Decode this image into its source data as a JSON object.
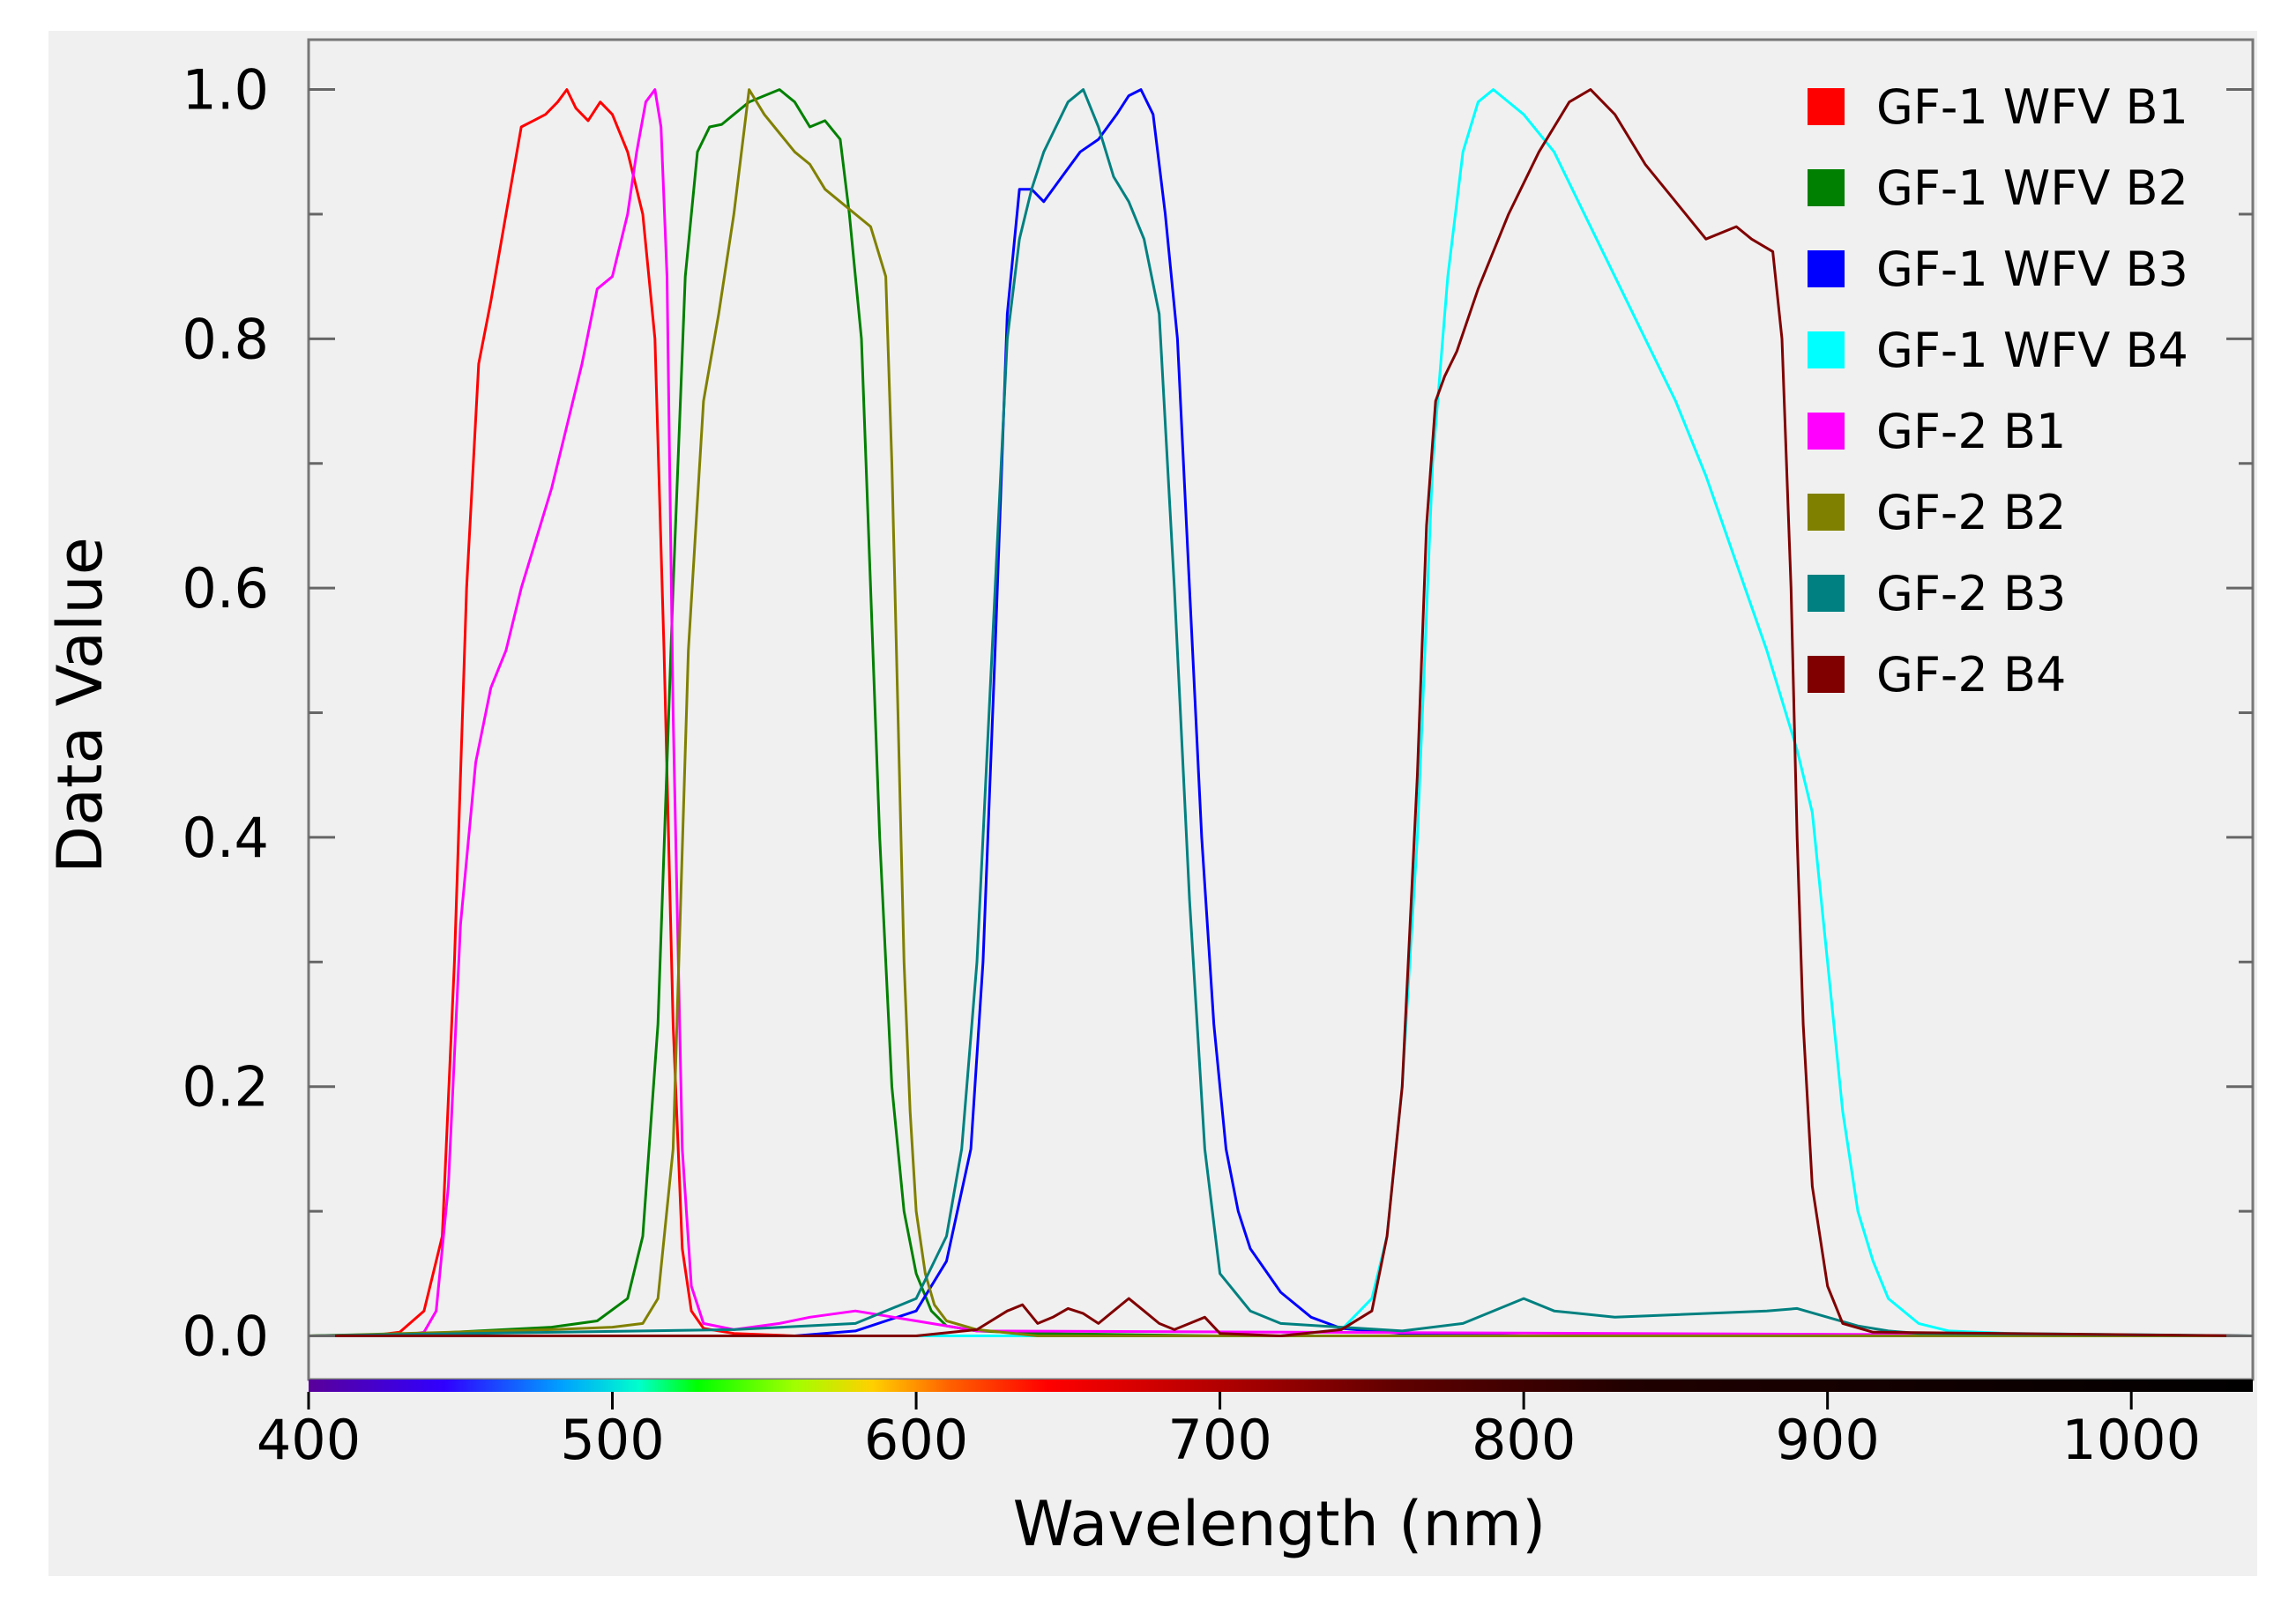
{
  "chart_data": {
    "type": "line",
    "title": "",
    "xlabel": "Wavelength (nm)",
    "ylabel": "Data Value",
    "xlim": [
      400,
      1040
    ],
    "ylim": [
      -0.035,
      1.04
    ],
    "x_ticks": [
      400,
      500,
      600,
      700,
      800,
      900,
      1000
    ],
    "x_tick_labels": [
      "400",
      "500",
      "600",
      "700",
      "800",
      "900",
      "1000"
    ],
    "y_ticks": [
      0,
      0.2,
      0.4,
      0.6,
      0.8,
      1.0
    ],
    "y_tick_labels": [
      "0.0",
      "0.2",
      "0.4",
      "0.6",
      "0.8",
      "1.0"
    ],
    "legend_position": "top-right",
    "spectrum_bar": true,
    "series": [
      {
        "name": "GF-1 WFV B1",
        "color": "#ff0000",
        "x": [
          400,
          420,
          430,
          438,
          444,
          448,
          452,
          456,
          460,
          465,
          470,
          474,
          478,
          482,
          485,
          488,
          492,
          496,
          500,
          505,
          510,
          514,
          517,
          520,
          523,
          526,
          530,
          540,
          560,
          600,
          700,
          1040
        ],
        "y": [
          0,
          0,
          0.003,
          0.02,
          0.08,
          0.3,
          0.6,
          0.78,
          0.83,
          0.9,
          0.97,
          0.975,
          0.98,
          0.99,
          1.0,
          0.985,
          0.975,
          0.99,
          0.98,
          0.95,
          0.9,
          0.8,
          0.55,
          0.25,
          0.07,
          0.02,
          0.006,
          0.002,
          0,
          0,
          0,
          0
        ]
      },
      {
        "name": "GF-1 WFV B2",
        "color": "#008000",
        "x": [
          400,
          440,
          480,
          495,
          505,
          510,
          515,
          520,
          524,
          528,
          532,
          536,
          540,
          545,
          550,
          555,
          560,
          565,
          570,
          575,
          578,
          582,
          585,
          588,
          592,
          596,
          600,
          605,
          610,
          620,
          640,
          700,
          1040
        ],
        "y": [
          0,
          0.002,
          0.007,
          0.012,
          0.03,
          0.08,
          0.25,
          0.6,
          0.85,
          0.95,
          0.97,
          0.972,
          0.98,
          0.99,
          0.995,
          1.0,
          0.99,
          0.97,
          0.975,
          0.96,
          0.9,
          0.8,
          0.6,
          0.4,
          0.2,
          0.1,
          0.05,
          0.02,
          0.008,
          0.004,
          0.002,
          0,
          0
        ]
      },
      {
        "name": "GF-1 WFV B3",
        "color": "#0000ff",
        "x": [
          400,
          560,
          580,
          600,
          610,
          618,
          622,
          626,
          630,
          634,
          638,
          642,
          648,
          654,
          660,
          666,
          670,
          674,
          678,
          682,
          686,
          690,
          694,
          698,
          702,
          706,
          710,
          720,
          730,
          740,
          760,
          800,
          1040
        ],
        "y": [
          0,
          0,
          0.004,
          0.02,
          0.06,
          0.15,
          0.3,
          0.55,
          0.82,
          0.92,
          0.92,
          0.91,
          0.93,
          0.95,
          0.96,
          0.98,
          0.995,
          1.0,
          0.98,
          0.9,
          0.8,
          0.6,
          0.4,
          0.25,
          0.15,
          0.1,
          0.07,
          0.035,
          0.015,
          0.006,
          0.002,
          0,
          0
        ]
      },
      {
        "name": "GF-1 WFV B4",
        "color": "#00ffff",
        "x": [
          400,
          720,
          740,
          750,
          755,
          760,
          765,
          770,
          775,
          780,
          785,
          790,
          800,
          810,
          820,
          830,
          840,
          850,
          860,
          870,
          880,
          890,
          895,
          900,
          905,
          910,
          915,
          920,
          930,
          940,
          960,
          1040
        ],
        "y": [
          0,
          0,
          0.005,
          0.03,
          0.08,
          0.2,
          0.4,
          0.7,
          0.85,
          0.95,
          0.99,
          1.0,
          0.98,
          0.95,
          0.9,
          0.85,
          0.8,
          0.75,
          0.69,
          0.62,
          0.55,
          0.47,
          0.42,
          0.3,
          0.18,
          0.1,
          0.06,
          0.03,
          0.01,
          0.004,
          0.002,
          0
        ]
      },
      {
        "name": "GF-2 B1",
        "color": "#ff00ff",
        "x": [
          400,
          430,
          438,
          442,
          446,
          450,
          455,
          460,
          465,
          470,
          475,
          480,
          485,
          490,
          495,
          500,
          505,
          508,
          511,
          514,
          516,
          518,
          520,
          523,
          526,
          530,
          540,
          555,
          565,
          580,
          600,
          620,
          1040
        ],
        "y": [
          0,
          0,
          0.003,
          0.02,
          0.12,
          0.33,
          0.46,
          0.52,
          0.55,
          0.6,
          0.64,
          0.68,
          0.73,
          0.78,
          0.84,
          0.85,
          0.9,
          0.95,
          0.99,
          1.0,
          0.97,
          0.85,
          0.5,
          0.15,
          0.04,
          0.01,
          0.005,
          0.01,
          0.015,
          0.02,
          0.012,
          0.004,
          0
        ]
      },
      {
        "name": "GF-2 B2",
        "color": "#808000",
        "x": [
          400,
          480,
          500,
          510,
          515,
          520,
          525,
          530,
          535,
          540,
          545,
          550,
          555,
          560,
          565,
          570,
          575,
          580,
          585,
          590,
          592,
          594,
          596,
          598,
          600,
          603,
          606,
          610,
          620,
          640,
          1040
        ],
        "y": [
          0,
          0.005,
          0.007,
          0.01,
          0.03,
          0.15,
          0.55,
          0.75,
          0.82,
          0.9,
          1.0,
          0.98,
          0.965,
          0.95,
          0.94,
          0.92,
          0.91,
          0.9,
          0.89,
          0.85,
          0.7,
          0.5,
          0.3,
          0.18,
          0.1,
          0.05,
          0.025,
          0.012,
          0.005,
          0,
          0
        ]
      },
      {
        "name": "GF-2 B3",
        "color": "#008080",
        "x": [
          400,
          540,
          580,
          600,
          610,
          615,
          620,
          625,
          630,
          634,
          638,
          642,
          646,
          650,
          655,
          660,
          665,
          670,
          675,
          680,
          685,
          690,
          695,
          700,
          710,
          720,
          760,
          780,
          790,
          800,
          810,
          830,
          880,
          890,
          900,
          910,
          920,
          930,
          1040
        ],
        "y": [
          0,
          0.005,
          0.01,
          0.03,
          0.08,
          0.15,
          0.3,
          0.55,
          0.8,
          0.88,
          0.92,
          0.95,
          0.97,
          0.99,
          1.0,
          0.97,
          0.93,
          0.91,
          0.88,
          0.82,
          0.6,
          0.35,
          0.15,
          0.05,
          0.02,
          0.01,
          0.004,
          0.01,
          0.02,
          0.03,
          0.02,
          0.015,
          0.02,
          0.022,
          0.015,
          0.008,
          0.004,
          0.002,
          0
        ]
      },
      {
        "name": "GF-2 B4",
        "color": "#800000",
        "x": [
          400,
          600,
          620,
          630,
          635,
          640,
          645,
          650,
          655,
          660,
          665,
          670,
          675,
          680,
          685,
          690,
          695,
          700,
          720,
          740,
          750,
          755,
          760,
          765,
          768,
          771,
          774,
          778,
          785,
          795,
          805,
          815,
          822,
          830,
          840,
          850,
          860,
          870,
          875,
          882,
          885,
          888,
          890,
          892,
          895,
          900,
          905,
          915,
          1040
        ],
        "y": [
          0,
          0,
          0.005,
          0.02,
          0.025,
          0.01,
          0.015,
          0.022,
          0.018,
          0.01,
          0.02,
          0.03,
          0.02,
          0.01,
          0.005,
          0.01,
          0.015,
          0.002,
          0,
          0.005,
          0.02,
          0.08,
          0.2,
          0.45,
          0.65,
          0.75,
          0.77,
          0.79,
          0.84,
          0.9,
          0.95,
          0.99,
          1.0,
          0.98,
          0.94,
          0.91,
          0.88,
          0.89,
          0.88,
          0.87,
          0.8,
          0.6,
          0.4,
          0.25,
          0.12,
          0.04,
          0.01,
          0.003,
          0
        ]
      }
    ]
  }
}
